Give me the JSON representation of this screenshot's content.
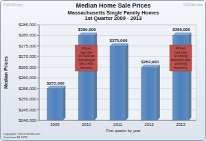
{
  "chart_data": {
    "type": "bar",
    "title": "Median Home Sale Prices",
    "subtitle": [
      "Massachusetts Single Family Homes",
      "1st Quarter  2009 - 2013"
    ],
    "x_label": "First quarter by year",
    "y_label": "Median Prices",
    "categories": [
      "2009",
      "2010",
      "2011",
      "2012",
      "2013"
    ],
    "values": [
      255000,
      280000,
      275000,
      264900,
      280000
    ],
    "value_labels": [
      "$255,000",
      "$280,000",
      "$275,000",
      "$264,900",
      "$280,000"
    ],
    "color": "#4f81bd",
    "data_labels": true,
    "grid": true,
    "ylim": [
      240000,
      285000
    ],
    "yticks": [
      {
        "value": 240000,
        "label": "$240,000"
      },
      {
        "value": 245000,
        "label": "$245,000"
      },
      {
        "value": 250000,
        "label": "$250,000"
      },
      {
        "value": 255000,
        "label": "$255,000"
      },
      {
        "value": 260000,
        "label": "$260,000"
      },
      {
        "value": 265000,
        "label": "$265,000"
      },
      {
        "value": 270000,
        "label": "$270,000"
      },
      {
        "value": 275000,
        "label": "$275,000"
      },
      {
        "value": 280000,
        "label": "$280,000"
      },
      {
        "value": 285000,
        "label": "$285,000"
      }
    ],
    "annotations": [
      {
        "category": "2010",
        "text": "Prices rise due to Federal homebuyer tax credit stimulus."
      },
      {
        "category": "2013",
        "text": "Prices rise due to strong demand and growing economy."
      }
    ],
    "watermark": "©02038.com",
    "credits": [
      "Copyright ©2013 02038.com",
      "Data from MLSPIN"
    ]
  }
}
